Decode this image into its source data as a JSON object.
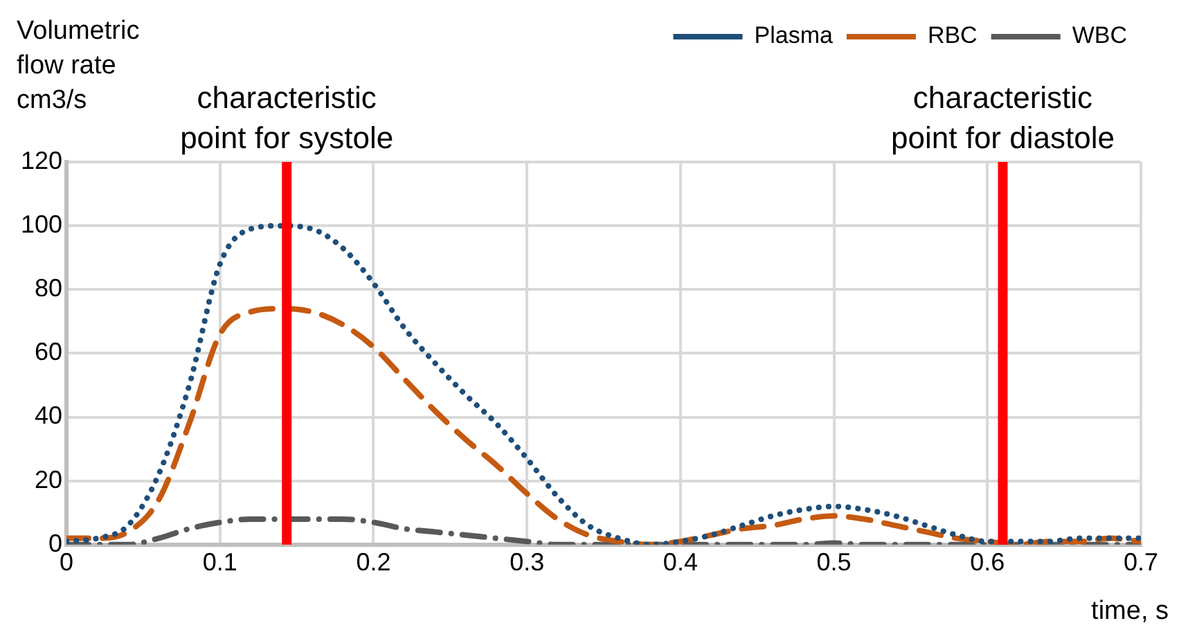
{
  "chart_data": {
    "type": "line",
    "xlabel": "time, s",
    "ylabel": "Volumetric\nflow rate\ncm3/s",
    "xlim": [
      0,
      0.7
    ],
    "xticks": [
      0,
      0.1,
      0.2,
      0.3,
      0.4,
      0.5,
      0.6,
      0.7
    ],
    "ylim": [
      0,
      120
    ],
    "yticks": [
      0,
      20,
      40,
      60,
      80,
      100,
      120
    ],
    "grid": true,
    "legend": "top right",
    "marker": "none",
    "x": [
      0,
      0.02,
      0.04,
      0.06,
      0.08,
      0.1,
      0.12,
      0.14,
      0.16,
      0.18,
      0.2,
      0.22,
      0.24,
      0.26,
      0.28,
      0.3,
      0.32,
      0.34,
      0.36,
      0.38,
      0.4,
      0.42,
      0.44,
      0.46,
      0.48,
      0.5,
      0.52,
      0.54,
      0.56,
      0.58,
      0.6,
      0.62,
      0.64,
      0.66,
      0.68,
      0.7
    ],
    "series": [
      {
        "name": "Plasma",
        "color": "#1f4e79",
        "line_style": "dotted",
        "values": [
          1,
          2,
          6,
          22,
          50,
          88,
          99,
          100,
          99,
          93,
          82,
          68,
          57,
          47,
          38,
          27,
          15,
          6,
          2,
          0,
          1,
          3,
          6,
          9,
          11,
          12,
          11,
          9,
          6,
          3,
          1,
          1,
          1,
          2,
          2,
          2
        ]
      },
      {
        "name": "RBC",
        "color": "#c55a11",
        "line_style": "dashed",
        "values": [
          2,
          2,
          4,
          14,
          38,
          66,
          73,
          74,
          73,
          69,
          62,
          52,
          42,
          33,
          25,
          16,
          8,
          3,
          1,
          0,
          1,
          3,
          5,
          6,
          8,
          9,
          8,
          6,
          4,
          2,
          1,
          0,
          1,
          1,
          2,
          1
        ]
      },
      {
        "name": "WBC",
        "color": "#595959",
        "line_style": "dashdot",
        "values": [
          0,
          0,
          0,
          2,
          5,
          7,
          8,
          8,
          8,
          8,
          7,
          5,
          4,
          3,
          2,
          1,
          0,
          0,
          0,
          0,
          0,
          0,
          0,
          0,
          0,
          0.5,
          0,
          0,
          0,
          0,
          0,
          0,
          0,
          0,
          0,
          0
        ]
      }
    ],
    "ref_lines": [
      {
        "axis": "x",
        "value": 0.1435,
        "label": "characteristic\npoint for systole",
        "color": "#ff0000"
      },
      {
        "axis": "x",
        "value": 0.61,
        "label": "characteristic\npoint for diastole",
        "color": "#ff0000"
      }
    ]
  }
}
